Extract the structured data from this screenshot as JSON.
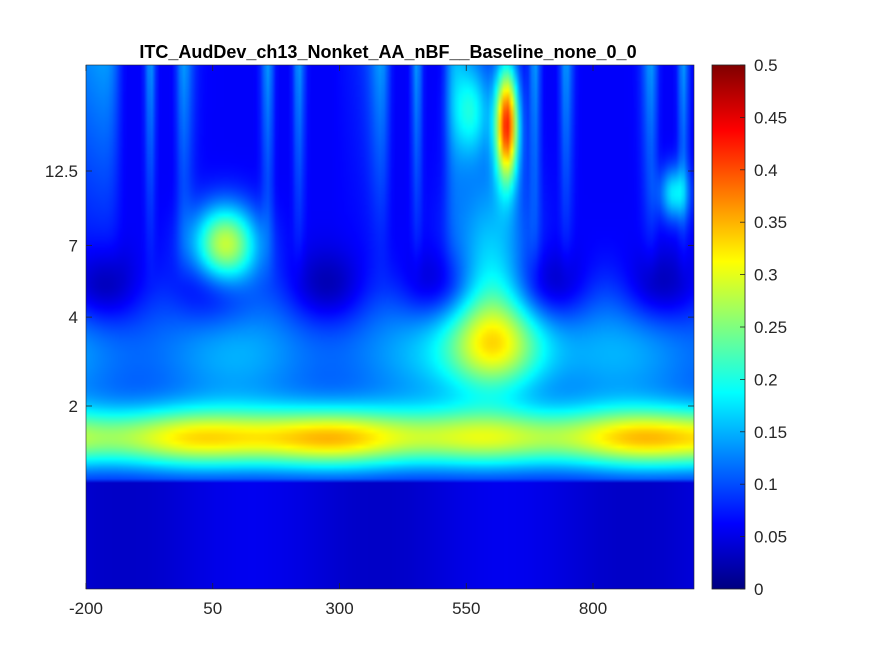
{
  "chart_data": {
    "type": "heatmap",
    "title": "ITC_AudDev_ch13_Nonket_AA_nBF__Baseline_none_0_0",
    "xlabel": "",
    "ylabel": "",
    "colormap": "jet",
    "x_ticks": [
      "-200",
      "50",
      "300",
      "550",
      "800"
    ],
    "y_ticks": [
      "2",
      "4",
      "7",
      "12.5"
    ],
    "colorbar_ticks": [
      "0",
      "0.05",
      "0.1",
      "0.15",
      "0.2",
      "0.25",
      "0.3",
      "0.35",
      "0.4",
      "0.45",
      "0.5"
    ],
    "xlim": [
      -200,
      1000
    ],
    "clim": [
      0,
      0.5
    ],
    "y_scale": "log",
    "y_tick_values": [
      2,
      4,
      7,
      12.5
    ],
    "colorbar_tick_values": [
      0,
      0.05,
      0.1,
      0.15,
      0.2,
      0.25,
      0.3,
      0.35,
      0.4,
      0.45,
      0.5
    ],
    "x_tick_values": [
      -200,
      50,
      300,
      550,
      800
    ],
    "features": {
      "low_freq_band": {
        "freq_range": [
          1.2,
          2.0
        ],
        "value": 0.33
      },
      "peak_event": {
        "time": 630,
        "freq_range": [
          10,
          25
        ],
        "value": 0.45
      },
      "blob_early": {
        "time": 75,
        "freq": 7,
        "value": 0.35
      },
      "blob_mid": {
        "time": 610,
        "freq": 3.2,
        "value": 0.32
      }
    }
  }
}
